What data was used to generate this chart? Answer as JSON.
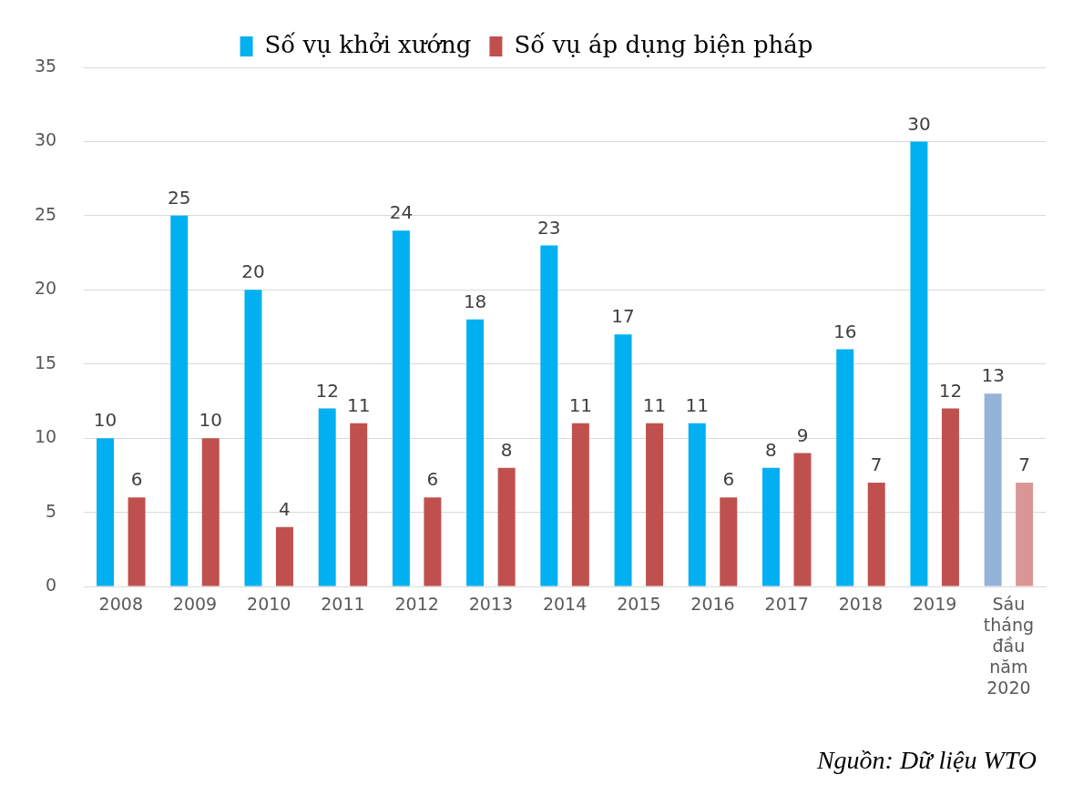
{
  "chart_data": {
    "type": "bar",
    "categories": [
      "2008",
      "2009",
      "2010",
      "2011",
      "2012",
      "2013",
      "2014",
      "2015",
      "2016",
      "2017",
      "2018",
      "2019",
      "Sáu tháng đầu năm 2020"
    ],
    "series": [
      {
        "name": "Số vụ khởi xướng",
        "color": "#00b0f0",
        "colors": [
          "#00b0f0",
          "#00b0f0",
          "#00b0f0",
          "#00b0f0",
          "#00b0f0",
          "#00b0f0",
          "#00b0f0",
          "#00b0f0",
          "#00b0f0",
          "#00b0f0",
          "#00b0f0",
          "#00b0f0",
          "#95b3d7"
        ],
        "values": [
          10,
          25,
          20,
          12,
          24,
          18,
          23,
          17,
          11,
          8,
          16,
          30,
          13
        ]
      },
      {
        "name": "Số vụ áp dụng biện pháp",
        "color": "#c0504d",
        "colors": [
          "#c0504d",
          "#c0504d",
          "#c0504d",
          "#c0504d",
          "#c0504d",
          "#c0504d",
          "#c0504d",
          "#c0504d",
          "#c0504d",
          "#c0504d",
          "#c0504d",
          "#c0504d",
          "#d99694"
        ],
        "values": [
          6,
          10,
          4,
          11,
          6,
          8,
          11,
          11,
          6,
          9,
          7,
          12,
          7
        ]
      }
    ],
    "ylim": [
      0,
      35
    ],
    "yticks": [
      0,
      5,
      10,
      15,
      20,
      25,
      30,
      35
    ],
    "grid": "y",
    "legend": "top",
    "data_labels": true,
    "annotations": [
      "Nguồn: Dữ liệu WTO"
    ]
  }
}
